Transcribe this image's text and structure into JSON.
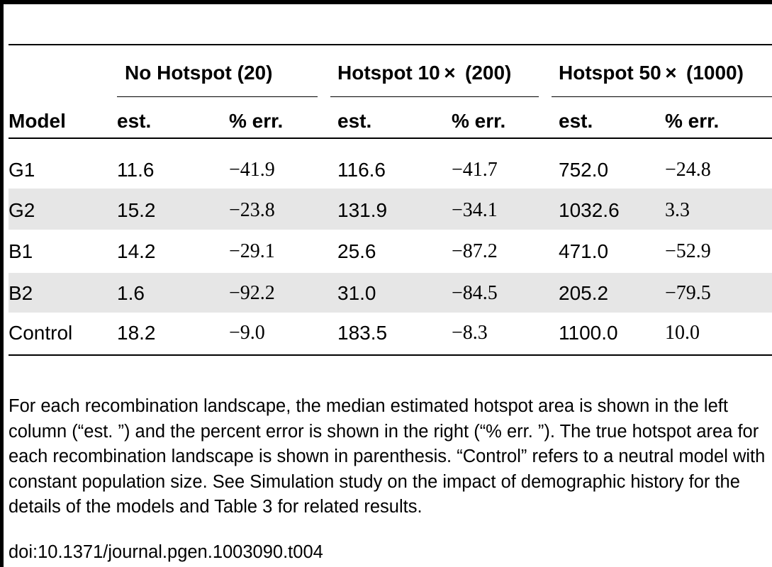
{
  "table": {
    "group_headers": [
      {
        "label": "No Hotspot (20)"
      },
      {
        "label": "Hotspot 10 ×  (200)"
      },
      {
        "label": "Hotspot 50 ×  (1000)"
      }
    ],
    "column_headers": {
      "model": "Model",
      "est": "est.",
      "err": "% err."
    },
    "rows": [
      {
        "model": "G1",
        "values": [
          "11.6",
          "−41.9",
          "116.6",
          "−41.7",
          "752.0",
          "−24.8"
        ]
      },
      {
        "model": "G2",
        "values": [
          "15.2",
          "−23.8",
          "131.9",
          "−34.1",
          "1032.6",
          "3.3"
        ]
      },
      {
        "model": "B1",
        "values": [
          "14.2",
          "−29.1",
          "25.6",
          "−87.2",
          "471.0",
          "−52.9"
        ]
      },
      {
        "model": "B2",
        "values": [
          "1.6",
          "−92.2",
          "31.0",
          "−84.5",
          "205.2",
          "−79.5"
        ]
      },
      {
        "model": "Control",
        "values": [
          "18.2",
          "−9.0",
          "183.5",
          "−8.3",
          "1100.0",
          "10.0"
        ]
      }
    ]
  },
  "caption": "For each recombination landscape, the median estimated hotspot area is shown in the left column (“est. ”) and the percent error is shown in the right (“% err. ”). The true hotspot area for each recombination landscape is shown in parenthesis. “Control” refers to a neutral model with constant population size. See Simulation study on the impact of demographic history for the details of the models and Table 3 for related results.",
  "doi": "doi:10.1371/journal.pgen.1003090.t004"
}
